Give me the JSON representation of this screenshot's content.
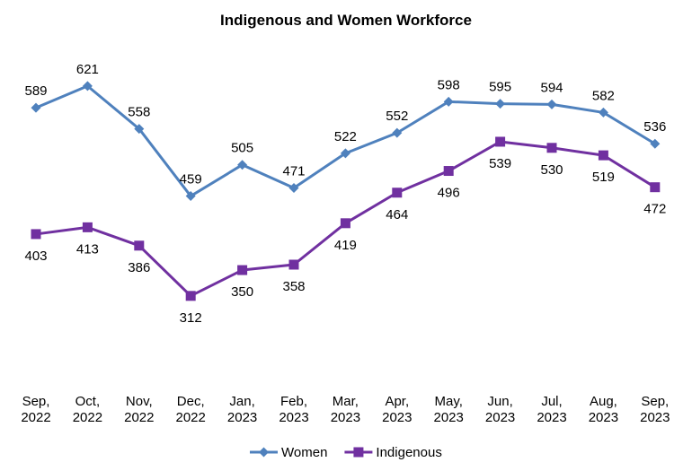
{
  "chart_data": {
    "type": "line",
    "title": "Indigenous and Women Workforce",
    "xlabel": "",
    "ylabel": "",
    "grid": false,
    "legend_position": "bottom",
    "ylim": [
      0,
      650
    ],
    "categories": [
      [
        "Sep,",
        "2022"
      ],
      [
        "Oct,",
        "2022"
      ],
      [
        "Nov,",
        "2022"
      ],
      [
        "Dec,",
        "2022"
      ],
      [
        "Jan,",
        "2023"
      ],
      [
        "Feb,",
        "2023"
      ],
      [
        "Mar,",
        "2023"
      ],
      [
        "Apr,",
        "2023"
      ],
      [
        "May,",
        "2023"
      ],
      [
        "Jun,",
        "2023"
      ],
      [
        "Jul,",
        "2023"
      ],
      [
        "Aug,",
        "2023"
      ],
      [
        "Sep,",
        "2023"
      ]
    ],
    "series": [
      {
        "name": "Women",
        "color": "#4F81BD",
        "marker": "diamond",
        "label_position": "above",
        "values": [
          589,
          621,
          558,
          459,
          505,
          471,
          522,
          552,
          598,
          595,
          594,
          582,
          536
        ]
      },
      {
        "name": "Indigenous",
        "color": "#7030A0",
        "marker": "square",
        "label_position": "below",
        "values": [
          403,
          413,
          386,
          312,
          350,
          358,
          419,
          464,
          496,
          539,
          530,
          519,
          472
        ]
      }
    ]
  }
}
